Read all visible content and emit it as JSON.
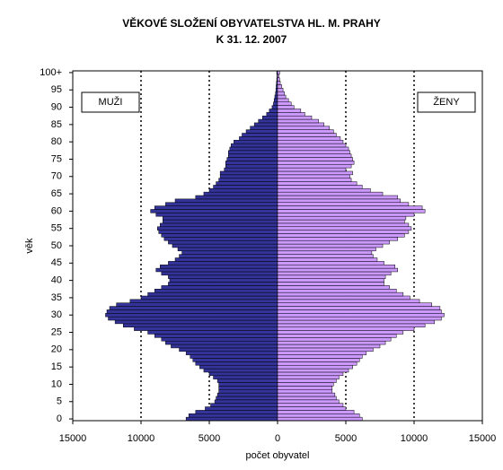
{
  "chart_data": {
    "type": "pyramid",
    "title": "VĚKOVÉ SLOŽENÍ OBYVATELSTVA HL. M. PRAHY",
    "subtitle": "K  31. 12. 2007",
    "x_label": "počet obyvatel",
    "y_label": "věk",
    "categories": [
      0,
      null,
      null,
      null,
      null,
      5,
      null,
      null,
      null,
      null,
      10,
      null,
      null,
      null,
      null,
      15,
      null,
      null,
      null,
      null,
      20,
      null,
      null,
      null,
      null,
      25,
      null,
      null,
      null,
      null,
      30,
      null,
      null,
      null,
      null,
      35,
      null,
      null,
      null,
      null,
      40,
      null,
      null,
      null,
      null,
      45,
      null,
      null,
      null,
      null,
      50,
      null,
      null,
      null,
      null,
      55,
      null,
      null,
      null,
      null,
      60,
      null,
      null,
      null,
      null,
      65,
      null,
      null,
      null,
      null,
      70,
      null,
      null,
      null,
      null,
      75,
      null,
      null,
      null,
      null,
      80,
      null,
      null,
      null,
      null,
      85,
      null,
      null,
      null,
      null,
      90,
      null,
      null,
      null,
      null,
      95,
      null,
      null,
      null,
      null,
      "100+"
    ],
    "series": [
      {
        "name": "MUŽI",
        "color": "#333399",
        "side": "left",
        "values": [
          6700,
          6500,
          6000,
          5300,
          4900,
          4600,
          4500,
          4400,
          4300,
          4300,
          4300,
          4400,
          4700,
          5000,
          5400,
          5700,
          6000,
          6200,
          6400,
          6700,
          7200,
          7800,
          8200,
          8500,
          9000,
          9500,
          10500,
          11300,
          11900,
          12400,
          12600,
          12500,
          12300,
          11800,
          10800,
          10000,
          9500,
          9000,
          8500,
          8000,
          7900,
          8000,
          8500,
          8900,
          8600,
          8000,
          7500,
          7200,
          7000,
          7300,
          7700,
          8000,
          8300,
          8500,
          8700,
          8800,
          8600,
          8400,
          8400,
          8900,
          9300,
          9000,
          8200,
          7500,
          6000,
          5400,
          5000,
          4700,
          4500,
          4300,
          4200,
          4200,
          3900,
          3800,
          3800,
          3700,
          3600,
          3600,
          3500,
          3400,
          3200,
          2800,
          2600,
          2300,
          2000,
          1700,
          1400,
          1100,
          800,
          600,
          400,
          300,
          250,
          200,
          150,
          120,
          100,
          80,
          60,
          40,
          60
        ]
      },
      {
        "name": "ŽENY",
        "color": "#cc99ff",
        "side": "right",
        "values": [
          6200,
          6000,
          5600,
          5000,
          4800,
          4500,
          4300,
          4200,
          4000,
          4000,
          4100,
          4300,
          4500,
          4800,
          5200,
          5500,
          5800,
          6000,
          6200,
          6500,
          7000,
          7500,
          7900,
          8300,
          8700,
          9200,
          10000,
          10800,
          11500,
          12000,
          12200,
          12000,
          11900,
          11300,
          10400,
          9700,
          9200,
          8700,
          8200,
          7800,
          7800,
          7900,
          8300,
          8800,
          8600,
          7800,
          7300,
          7000,
          6900,
          7200,
          7700,
          8200,
          8800,
          9300,
          9600,
          9800,
          9600,
          9300,
          9400,
          10000,
          10800,
          10600,
          9600,
          9000,
          8800,
          7700,
          6800,
          6200,
          5800,
          5400,
          5300,
          5500,
          5000,
          5400,
          5600,
          5500,
          5400,
          5300,
          5200,
          5000,
          4800,
          4600,
          4300,
          4100,
          3800,
          3400,
          3000,
          2500,
          2000,
          1700,
          1200,
          1000,
          800,
          600,
          500,
          400,
          300,
          200,
          150,
          100,
          150
        ]
      }
    ],
    "xlim": [
      -15000,
      15000
    ],
    "xticks": [
      {
        "value": -15000,
        "label": "15000"
      },
      {
        "value": -10000,
        "label": "10000"
      },
      {
        "value": -5000,
        "label": "5000"
      },
      0,
      5000,
      10000,
      15000
    ],
    "grid": true
  }
}
